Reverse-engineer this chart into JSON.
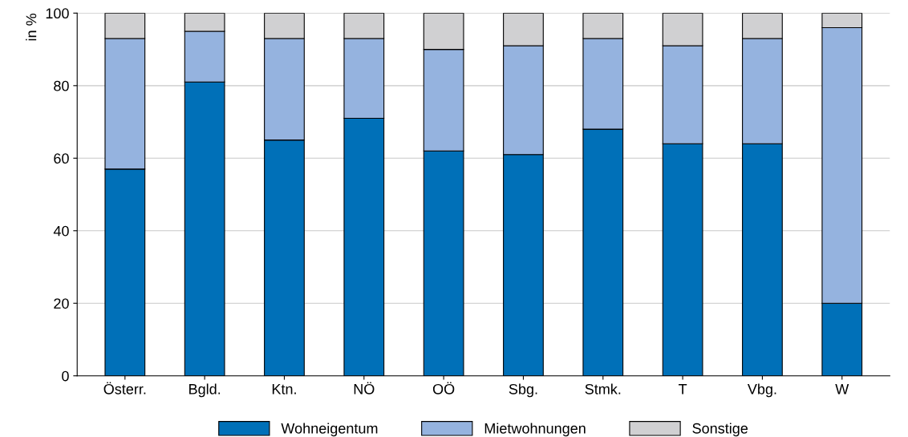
{
  "chart_data": {
    "type": "bar",
    "stacked": true,
    "ylabel": "in %",
    "categories": [
      "Österr.",
      "Bgld.",
      "Ktn.",
      "NÖ",
      "OÖ",
      "Sbg.",
      "Stmk.",
      "T",
      "Vbg.",
      "W"
    ],
    "series": [
      {
        "name": "Wohneigentum",
        "color": "#0070b8",
        "values": [
          57,
          81,
          65,
          71,
          62,
          61,
          68,
          64,
          64,
          20
        ]
      },
      {
        "name": "Mietwohnungen",
        "color": "#95b3df",
        "values": [
          36,
          14,
          28,
          22,
          28,
          30,
          25,
          27,
          29,
          76
        ]
      },
      {
        "name": "Sonstige",
        "color": "#d0d0d2",
        "values": [
          7,
          5,
          7,
          7,
          10,
          9,
          7,
          9,
          7,
          4
        ]
      }
    ],
    "ylim": [
      0,
      100
    ],
    "yticks": [
      0,
      20,
      40,
      60,
      80,
      100
    ],
    "grid": "y",
    "legend": "bottom"
  }
}
